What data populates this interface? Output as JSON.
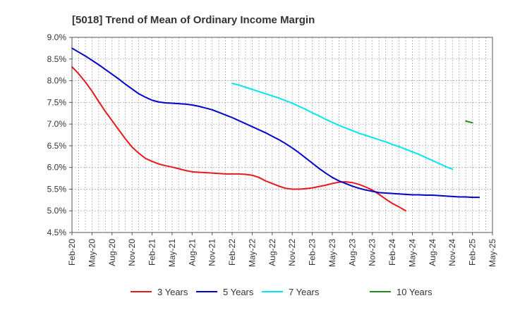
{
  "chart_data": {
    "type": "line",
    "title": "[5018]  Trend of Mean of Ordinary Income Margin",
    "xlabel": "",
    "ylabel": "",
    "x_labels": [
      "Feb-20",
      "May-20",
      "Aug-20",
      "Nov-20",
      "Feb-21",
      "May-21",
      "Aug-21",
      "Nov-21",
      "Feb-22",
      "May-22",
      "Aug-22",
      "Nov-22",
      "Feb-23",
      "May-23",
      "Aug-23",
      "Nov-23",
      "Feb-24",
      "May-24",
      "Aug-24",
      "Nov-24",
      "Feb-25",
      "May-25"
    ],
    "y_ticks": [
      "9.0%",
      "8.5%",
      "8.0%",
      "7.5%",
      "7.0%",
      "6.5%",
      "6.0%",
      "5.5%",
      "5.0%",
      "4.5%"
    ],
    "ylim": [
      4.5,
      9.0
    ],
    "grid": true,
    "legend_position": "bottom",
    "series": [
      {
        "name": "3 Years",
        "color": "#e41a1c",
        "start": "Feb-20",
        "values": [
          8.32,
          8.16,
          7.97,
          7.76,
          7.52,
          7.29,
          7.08,
          6.87,
          6.66,
          6.47,
          6.33,
          6.21,
          6.14,
          6.08,
          6.04,
          6.01,
          5.97,
          5.93,
          5.9,
          5.89,
          5.88,
          5.87,
          5.86,
          5.85,
          5.85,
          5.85,
          5.84,
          5.82,
          5.77,
          5.69,
          5.63,
          5.57,
          5.52,
          5.5,
          5.5,
          5.51,
          5.53,
          5.56,
          5.59,
          5.63,
          5.66,
          5.67,
          5.65,
          5.61,
          5.55,
          5.48,
          5.38,
          5.27,
          5.17,
          5.09,
          5.0
        ]
      },
      {
        "name": "5 Years",
        "color": "#0000cc",
        "start": "Feb-20",
        "values": [
          8.75,
          8.66,
          8.57,
          8.47,
          8.37,
          8.26,
          8.15,
          8.04,
          7.92,
          7.81,
          7.7,
          7.62,
          7.55,
          7.51,
          7.49,
          7.48,
          7.47,
          7.46,
          7.44,
          7.41,
          7.37,
          7.33,
          7.27,
          7.21,
          7.15,
          7.08,
          7.01,
          6.94,
          6.87,
          6.8,
          6.72,
          6.64,
          6.55,
          6.45,
          6.34,
          6.22,
          6.1,
          5.98,
          5.87,
          5.77,
          5.69,
          5.63,
          5.57,
          5.52,
          5.48,
          5.45,
          5.42,
          5.41,
          5.4,
          5.39,
          5.38,
          5.37,
          5.37,
          5.36,
          5.36,
          5.35,
          5.34,
          5.33,
          5.32,
          5.32,
          5.31,
          5.31
        ]
      },
      {
        "name": "7 Years",
        "color": "#00e5ee",
        "start": "Feb-22",
        "values": [
          7.94,
          7.9,
          7.85,
          7.8,
          7.75,
          7.7,
          7.65,
          7.6,
          7.54,
          7.48,
          7.41,
          7.34,
          7.26,
          7.19,
          7.11,
          7.04,
          6.97,
          6.91,
          6.85,
          6.79,
          6.74,
          6.69,
          6.64,
          6.59,
          6.53,
          6.48,
          6.42,
          6.36,
          6.3,
          6.23,
          6.16,
          6.09,
          6.02,
          5.96
        ]
      },
      {
        "name": "10 Years",
        "color": "#228b22",
        "start": "Jan-25",
        "values": [
          7.07,
          7.03
        ]
      }
    ]
  }
}
